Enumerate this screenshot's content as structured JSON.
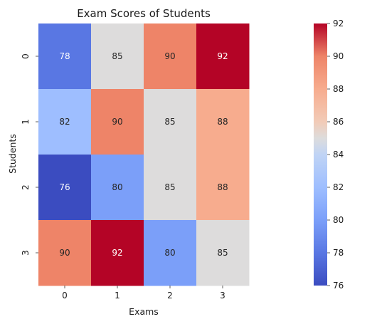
{
  "chart_data": {
    "type": "heatmap",
    "title": "Exam Scores of Students",
    "xlabel": "Exams",
    "ylabel": "Students",
    "x_categories": [
      "0",
      "1",
      "2",
      "3"
    ],
    "y_categories": [
      "0",
      "1",
      "2",
      "3"
    ],
    "values": [
      [
        78,
        85,
        90,
        92
      ],
      [
        82,
        90,
        85,
        88
      ],
      [
        76,
        80,
        85,
        88
      ],
      [
        90,
        92,
        80,
        85
      ]
    ],
    "colormap": "coolwarm",
    "vmin": 76,
    "vmax": 92,
    "colorbar_ticks": [
      "76",
      "78",
      "80",
      "82",
      "84",
      "86",
      "88",
      "90",
      "92"
    ],
    "annotated": true
  }
}
